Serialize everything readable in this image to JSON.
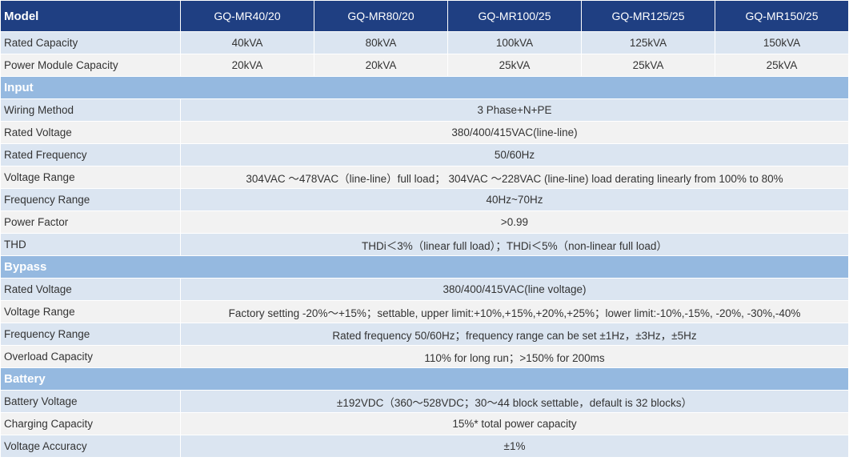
{
  "table": {
    "header": [
      "Model",
      "GQ-MR40/20",
      "GQ-MR80/20",
      "GQ-MR100/25",
      "GQ-MR125/25",
      "GQ-MR150/25"
    ],
    "rows": [
      [
        "Rated Capacity",
        "40kVA",
        "80kVA",
        "100kVA",
        "125kVA",
        "150kVA"
      ],
      [
        "Power Module Capacity",
        "20kVA",
        "20kVA",
        "25kVA",
        "25kVA",
        "25kVA"
      ],
      [
        "Input"
      ],
      [
        "Wiring Method",
        "3 Phase+N+PE"
      ],
      [
        "Rated Voltage",
        "380/400/415VAC(line-line)"
      ],
      [
        "Rated Frequency",
        "50/60Hz"
      ],
      [
        "Voltage Range",
        "304VAC ～478VAC（line-line）full load； 304VAC ～228VAC (line-line) load derating linearly from 100% to 80%"
      ],
      [
        "Frequency Range",
        "40Hz~70Hz"
      ],
      [
        "Power Factor",
        ">0.99"
      ],
      [
        "THD",
        "THDi＜3%（linear full load）；THDi＜5%（non-linear full load）"
      ],
      [
        "Bypass"
      ],
      [
        "Rated Voltage",
        "380/400/415VAC(line voltage)"
      ],
      [
        "Voltage Range",
        "Factory setting -20%～+15%；settable, upper limit:+10%,+15%,+20%,+25%；lower limit:-10%,-15%, -20%, -30%,-40%"
      ],
      [
        "Frequency Range",
        "Rated frequency 50/60Hz；frequency range can be set ±1Hz，±3Hz，±5Hz"
      ],
      [
        "Overload Capacity",
        "110% for long run；>150% for 200ms"
      ],
      [
        "Battery"
      ],
      [
        "Battery Voltage",
        "±192VDC（360～528VDC；30～44 block settable，default is 32 blocks）"
      ],
      [
        "Charging Capacity",
        "15%* total power capacity"
      ],
      [
        "Voltage Accuracy",
        "±1%"
      ]
    ]
  }
}
